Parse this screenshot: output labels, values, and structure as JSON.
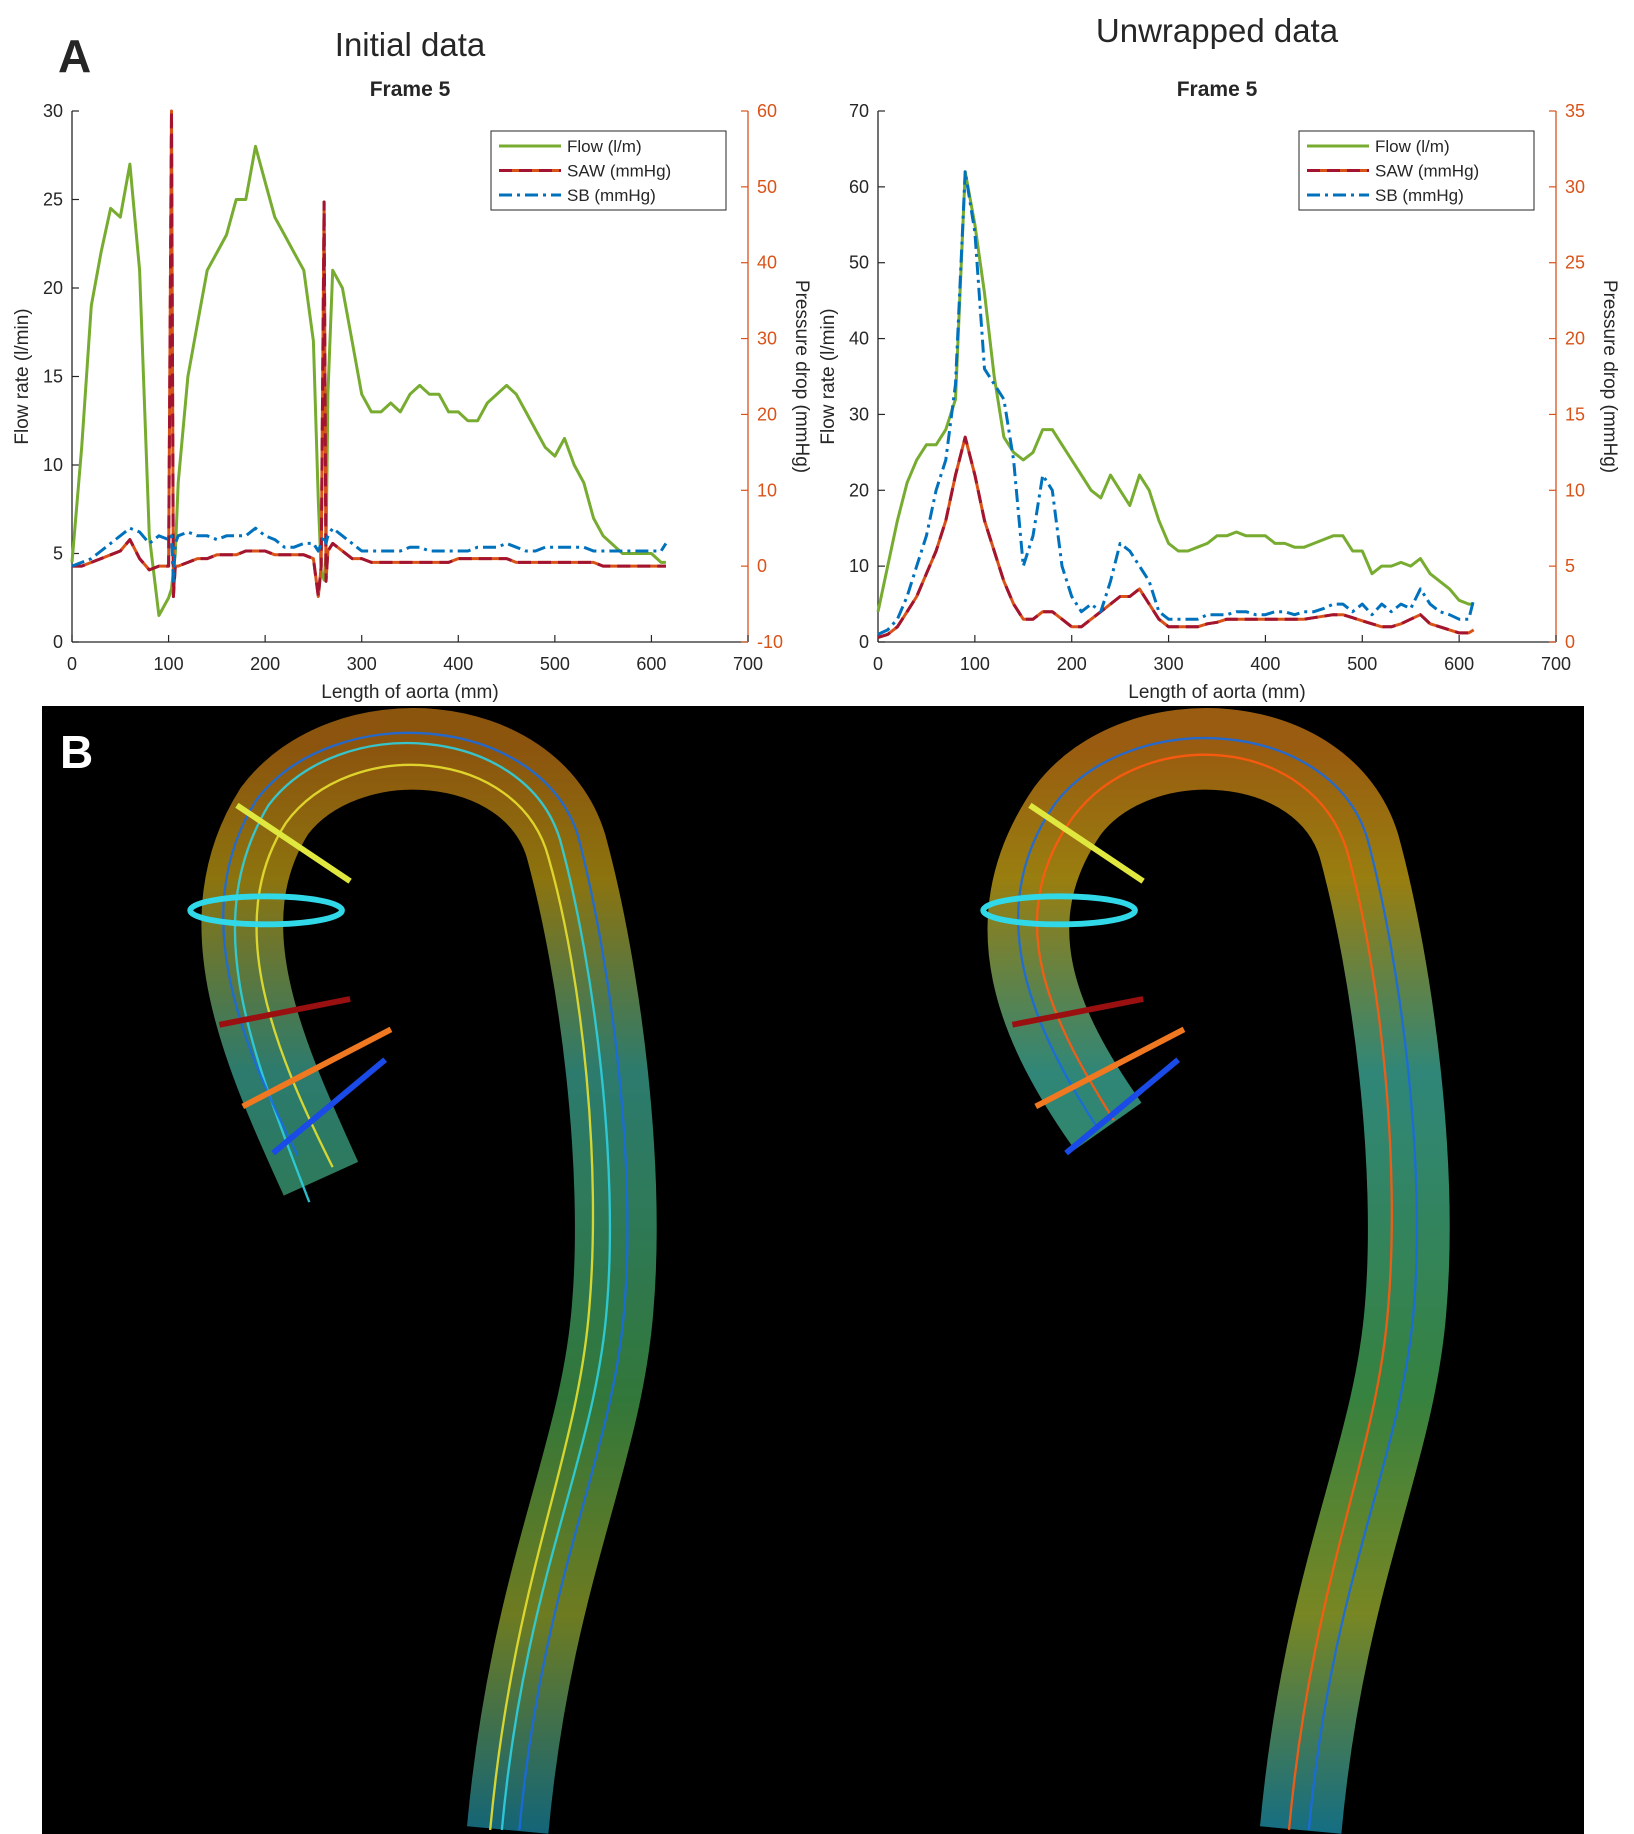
{
  "panel_labels": [
    "A",
    "B"
  ],
  "chart_data": [
    {
      "type": "line",
      "heading": "Initial data",
      "title": "Frame 5",
      "xlabel": "Length of aorta (mm)",
      "ylabel": "Flow rate (l/min)",
      "y2label": "Pressure drop (mmHg)",
      "xlim": [
        0,
        700
      ],
      "xticks": [
        0,
        100,
        200,
        300,
        400,
        500,
        600,
        700
      ],
      "ylim": [
        0,
        30
      ],
      "yticks": [
        0,
        5,
        10,
        15,
        20,
        25,
        30
      ],
      "y2lim": [
        -10,
        60
      ],
      "y2ticks": [
        -10,
        0,
        10,
        20,
        30,
        40,
        50,
        60
      ],
      "legend": "upper right",
      "x": [
        0,
        10,
        20,
        30,
        40,
        50,
        60,
        70,
        80,
        90,
        100,
        103,
        105,
        107,
        110,
        120,
        130,
        140,
        150,
        160,
        170,
        180,
        190,
        200,
        210,
        220,
        230,
        240,
        250,
        255,
        258,
        261,
        263,
        265,
        270,
        280,
        290,
        300,
        310,
        320,
        330,
        340,
        350,
        360,
        370,
        380,
        390,
        400,
        410,
        420,
        430,
        440,
        450,
        460,
        470,
        480,
        490,
        500,
        510,
        520,
        530,
        540,
        550,
        560,
        570,
        580,
        590,
        600,
        610,
        615
      ],
      "series": [
        {
          "name": "Flow (l/m)",
          "color": "#77ac30",
          "style": "solid",
          "values": [
            4.5,
            11,
            19,
            22,
            24.5,
            24,
            27,
            21,
            6,
            1.5,
            2.5,
            3,
            4,
            5,
            9,
            15,
            18,
            21,
            22,
            23,
            25,
            25,
            28,
            26,
            24,
            23,
            22,
            21,
            17,
            8,
            4,
            3.5,
            5,
            14,
            21,
            20,
            17,
            14,
            13,
            13,
            13.5,
            13,
            14,
            14.5,
            14,
            14,
            13,
            13,
            12.5,
            12.5,
            13.5,
            14,
            14.5,
            14,
            13,
            12,
            11,
            10.5,
            11.5,
            10,
            9,
            7,
            6,
            5.5,
            5,
            5,
            5,
            5,
            4.5,
            4.5
          ]
        },
        {
          "name": "SAW (mmHg)",
          "color": "#a2142f",
          "style": "dashed",
          "axis": "y2",
          "values": [
            0,
            0,
            0.5,
            1,
            1.5,
            2,
            3.5,
            1,
            -0.5,
            0,
            0,
            60,
            -4,
            0,
            0,
            0.5,
            1,
            1,
            1.5,
            1.5,
            1.5,
            2,
            2,
            2,
            1.5,
            1.5,
            1.5,
            1.5,
            1,
            -4,
            0,
            48,
            -2,
            2,
            3,
            2,
            1,
            1,
            0.5,
            0.5,
            0.5,
            0.5,
            0.5,
            0.5,
            0.5,
            0.5,
            0.5,
            1,
            1,
            1,
            1,
            1,
            1,
            0.5,
            0.5,
            0.5,
            0.5,
            0.5,
            0.5,
            0.5,
            0.5,
            0.5,
            0,
            0,
            0,
            0,
            0,
            0,
            0,
            0
          ]
        },
        {
          "name": "SB (mmHg)",
          "color": "#0072bd",
          "style": "dashdot",
          "axis": "y2",
          "values": [
            0,
            0.5,
            1,
            2,
            3,
            4,
            5,
            4.5,
            3,
            4,
            3.5,
            4,
            -2,
            3,
            4,
            4.5,
            4,
            4,
            3.5,
            4,
            4,
            4,
            5,
            4,
            3.5,
            2.5,
            2.5,
            3,
            3,
            2,
            3,
            4,
            3,
            4,
            5,
            4,
            3,
            2,
            2,
            2,
            2,
            2,
            2.5,
            2.5,
            2,
            2,
            2,
            2,
            2,
            2.5,
            2.5,
            2.5,
            3,
            2.5,
            2,
            2,
            2.5,
            2.5,
            2.5,
            2.5,
            2.5,
            2,
            2,
            2,
            2,
            2,
            2,
            2,
            2,
            3
          ]
        }
      ]
    },
    {
      "type": "line",
      "heading": "Unwrapped data",
      "title": "Frame 5",
      "xlabel": "Length of aorta (mm)",
      "ylabel": "Flow rate (l/min)",
      "y2label": "Pressure drop (mmHg)",
      "xlim": [
        0,
        700
      ],
      "xticks": [
        0,
        100,
        200,
        300,
        400,
        500,
        600,
        700
      ],
      "ylim": [
        0,
        70
      ],
      "yticks": [
        0,
        10,
        20,
        30,
        40,
        50,
        60,
        70
      ],
      "y2lim": [
        0,
        35
      ],
      "y2ticks": [
        0,
        5,
        10,
        15,
        20,
        25,
        30,
        35
      ],
      "legend": "upper right",
      "x": [
        0,
        10,
        20,
        30,
        40,
        50,
        60,
        70,
        80,
        90,
        100,
        110,
        120,
        130,
        140,
        150,
        160,
        170,
        180,
        190,
        200,
        210,
        220,
        230,
        240,
        250,
        260,
        270,
        280,
        290,
        300,
        310,
        320,
        330,
        340,
        350,
        360,
        370,
        380,
        390,
        400,
        410,
        420,
        430,
        440,
        450,
        460,
        470,
        480,
        490,
        500,
        510,
        520,
        530,
        540,
        550,
        560,
        570,
        580,
        590,
        600,
        610,
        615
      ],
      "series": [
        {
          "name": "Flow (l/m)",
          "color": "#77ac30",
          "style": "solid",
          "values": [
            4,
            10,
            16,
            21,
            24,
            26,
            26,
            28,
            32,
            62,
            55,
            46,
            35,
            27,
            25,
            24,
            25,
            28,
            28,
            26,
            24,
            22,
            20,
            19,
            22,
            20,
            18,
            22,
            20,
            16,
            13,
            12,
            12,
            12.5,
            13,
            14,
            14,
            14.5,
            14,
            14,
            14,
            13,
            13,
            12.5,
            12.5,
            13,
            13.5,
            14,
            14,
            12,
            12,
            9,
            10,
            10,
            10.5,
            10,
            11,
            9,
            8,
            7,
            5.5,
            5,
            5
          ]
        },
        {
          "name": "SAW (mmHg)",
          "color": "#a2142f",
          "style": "dashed",
          "axis": "y2",
          "values": [
            0.3,
            0.5,
            1,
            2,
            3,
            4.5,
            6,
            8,
            11,
            13.5,
            11,
            8,
            6,
            4,
            2.5,
            1.5,
            1.5,
            2,
            2,
            1.5,
            1,
            1,
            1.5,
            2,
            2.5,
            3,
            3,
            3.5,
            2.5,
            1.5,
            1,
            1,
            1,
            1,
            1.2,
            1.3,
            1.5,
            1.5,
            1.5,
            1.5,
            1.5,
            1.5,
            1.5,
            1.5,
            1.5,
            1.6,
            1.7,
            1.8,
            1.8,
            1.6,
            1.4,
            1.2,
            1,
            1,
            1.2,
            1.5,
            1.8,
            1.2,
            1,
            0.8,
            0.6,
            0.6,
            0.8
          ]
        },
        {
          "name": "SB (mmHg)",
          "color": "#0072bd",
          "style": "dashdot",
          "axis": "y2",
          "values": [
            0.5,
            0.8,
            1.5,
            3,
            5,
            7,
            10,
            12,
            17,
            31,
            27,
            18,
            17,
            16,
            12,
            5,
            7,
            11,
            10,
            5,
            3,
            2,
            2.5,
            2,
            4,
            6.5,
            6,
            5,
            4,
            2,
            1.5,
            1.5,
            1.5,
            1.5,
            1.8,
            1.8,
            1.8,
            2,
            2,
            1.8,
            1.8,
            2,
            2,
            1.8,
            2,
            2,
            2.2,
            2.5,
            2.5,
            2,
            2.5,
            1.8,
            2.5,
            2,
            2.5,
            2.2,
            3.5,
            2.5,
            2,
            1.8,
            1.5,
            1.5,
            2.8
          ]
        }
      ]
    }
  ]
}
